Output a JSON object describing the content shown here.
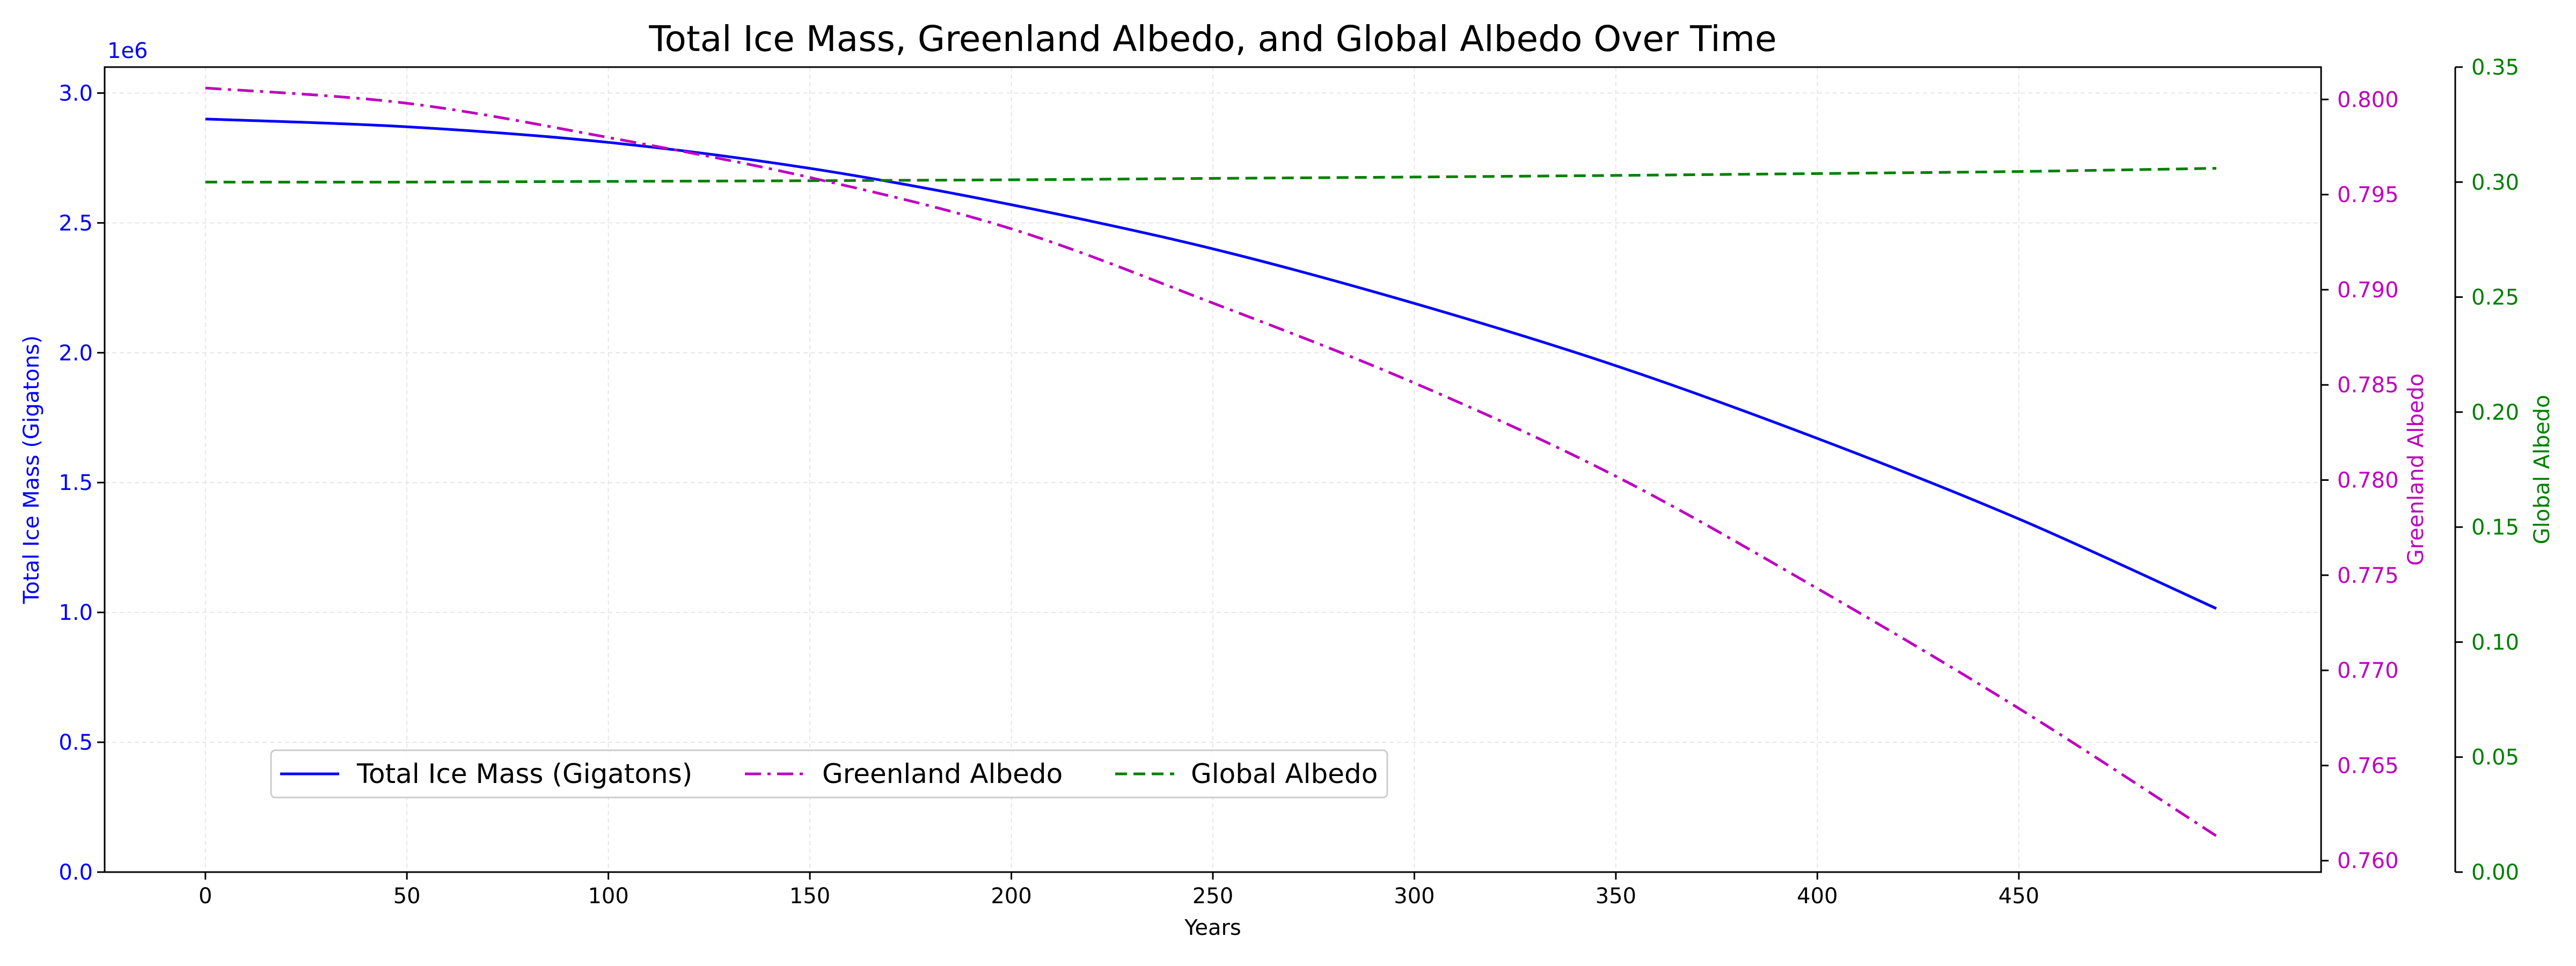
{
  "chart_data": {
    "type": "line",
    "title": "Total Ice Mass, Greenland Albedo, and Global Albedo Over Time",
    "xlabel": "Years",
    "xlim": [
      -25,
      525
    ],
    "x_ticks": [
      0,
      50,
      100,
      150,
      200,
      250,
      300,
      350,
      400,
      450
    ],
    "grid": true,
    "legend": {
      "placement": "lower-left",
      "ncol": 3
    },
    "axes": {
      "left": {
        "label": "Total Ice Mass (Gigatons)",
        "color": "#0000ff",
        "ylim": [
          0,
          3.1
        ],
        "ticks": [
          "0.0",
          "0.5",
          "1.0",
          "1.5",
          "2.0",
          "2.5",
          "3.0"
        ],
        "tick_values": [
          0,
          0.5,
          1.0,
          1.5,
          2.0,
          2.5,
          3.0
        ],
        "offset_label": "1e6"
      },
      "right1": {
        "label": "Greenland Albedo",
        "color": "#bf00bf",
        "ylim": [
          0.7594,
          0.8017
        ],
        "ticks": [
          "0.760",
          "0.765",
          "0.770",
          "0.775",
          "0.780",
          "0.785",
          "0.790",
          "0.795",
          "0.800"
        ],
        "tick_values": [
          0.76,
          0.765,
          0.77,
          0.775,
          0.78,
          0.785,
          0.79,
          0.795,
          0.8
        ]
      },
      "right2": {
        "label": "Global Albedo",
        "color": "#008000",
        "ylim": [
          0,
          0.35
        ],
        "ticks": [
          "0.00",
          "0.05",
          "0.10",
          "0.15",
          "0.20",
          "0.25",
          "0.30",
          "0.35"
        ],
        "tick_values": [
          0,
          0.05,
          0.1,
          0.15,
          0.2,
          0.25,
          0.3,
          0.35
        ]
      }
    },
    "x": [
      0,
      50,
      100,
      150,
      200,
      250,
      300,
      350,
      400,
      450,
      499
    ],
    "series": [
      {
        "name": "Total Ice Mass (Gigatons)",
        "axis": "left",
        "color": "#0000ff",
        "style": "solid",
        "values": [
          2.9,
          2.87,
          2.81,
          2.71,
          2.57,
          2.4,
          2.19,
          1.95,
          1.67,
          1.36,
          1.015
        ]
      },
      {
        "name": "Greenland Albedo",
        "axis": "right1",
        "color": "#bf00bf",
        "style": "dashdot",
        "values": [
          0.8006,
          0.7998,
          0.798,
          0.7959,
          0.7932,
          0.7893,
          0.7851,
          0.7802,
          0.7743,
          0.768,
          0.7613
        ]
      },
      {
        "name": "Global Albedo",
        "axis": "right2",
        "color": "#008000",
        "style": "dashed",
        "values": [
          0.3,
          0.3,
          0.3003,
          0.3006,
          0.301,
          0.3016,
          0.3022,
          0.3029,
          0.3037,
          0.3046,
          0.306
        ]
      }
    ]
  }
}
